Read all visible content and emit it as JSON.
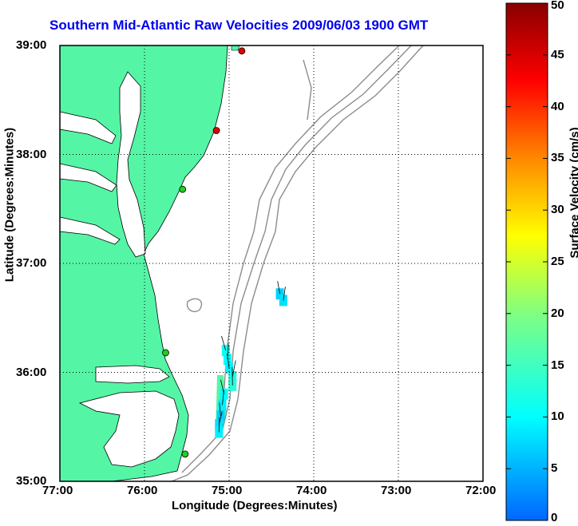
{
  "chart_data": {
    "type": "map-vector-field",
    "title": "Southern Mid-Atlantic Raw Velocities 2009/06/03 1900 GMT",
    "xlabel": "Longitude (Degrees:Minutes)",
    "ylabel": "Latitude (Degrees:Minutes)",
    "colorbar_label": "Surface Velocity (cm/s)",
    "x_ticks": [
      "77:00",
      "76:00",
      "75:00",
      "74:00",
      "73:00",
      "72:00"
    ],
    "y_ticks": [
      "39:00",
      "38:00",
      "37:00",
      "36:00",
      "35:00"
    ],
    "colorbar_ticks": [
      "50",
      "45",
      "40",
      "35",
      "30",
      "25",
      "20",
      "15",
      "10",
      "5",
      "0"
    ],
    "xlim_west_deg": [
      77,
      72
    ],
    "ylim_north_deg": [
      35,
      39
    ],
    "clim": [
      0,
      50
    ],
    "grid": true,
    "colors": {
      "land": "#55f5a6",
      "title": "#0000ee",
      "bathymetry": "#8c8c8c",
      "grid": "#000000"
    },
    "stations": [
      {
        "lon": 74.85,
        "lat": 38.95,
        "color": "#e00000"
      },
      {
        "lon": 75.15,
        "lat": 38.22,
        "color": "#e00000"
      },
      {
        "lon": 75.55,
        "lat": 37.68,
        "color": "#22cc22"
      },
      {
        "lon": 75.75,
        "lat": 36.18,
        "color": "#22cc22"
      },
      {
        "lon": 75.52,
        "lat": 35.25,
        "color": "#22cc22"
      }
    ],
    "vector_cells": [
      {
        "lon": 75.04,
        "lat": 36.2,
        "speed": 11
      },
      {
        "lon": 75.02,
        "lat": 36.12,
        "speed": 10
      },
      {
        "lon": 75.0,
        "lat": 36.04,
        "speed": 9
      },
      {
        "lon": 74.96,
        "lat": 35.96,
        "speed": 12
      },
      {
        "lon": 74.96,
        "lat": 35.88,
        "speed": 13
      },
      {
        "lon": 75.06,
        "lat": 35.8,
        "speed": 10
      },
      {
        "lon": 75.08,
        "lat": 35.7,
        "speed": 9
      },
      {
        "lon": 75.1,
        "lat": 35.6,
        "speed": 7
      },
      {
        "lon": 75.12,
        "lat": 35.52,
        "speed": 8
      },
      {
        "lon": 75.12,
        "lat": 35.45,
        "speed": 9
      },
      {
        "lon": 74.4,
        "lat": 36.72,
        "speed": 7
      },
      {
        "lon": 74.36,
        "lat": 36.66,
        "speed": 8
      }
    ]
  }
}
